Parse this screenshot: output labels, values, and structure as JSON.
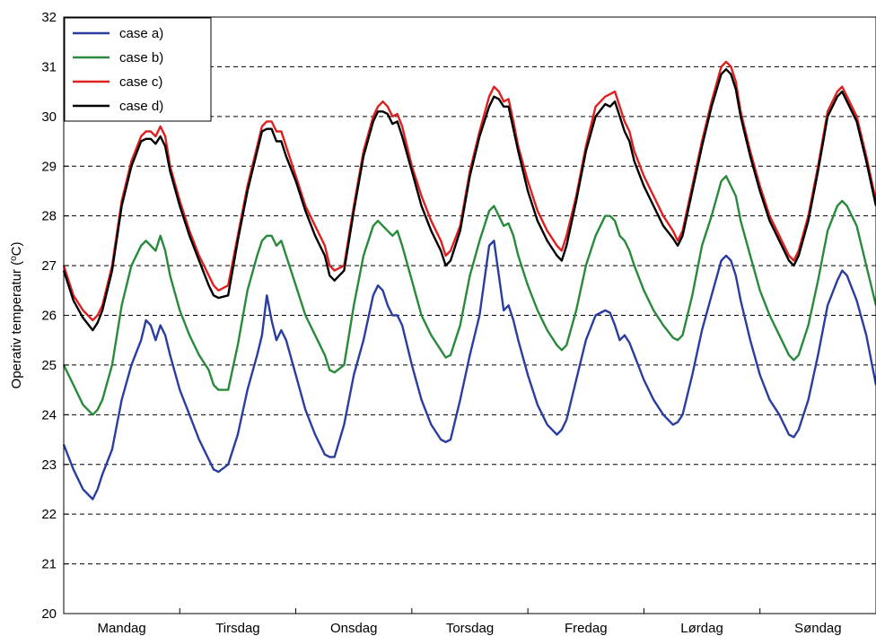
{
  "chart_data": {
    "type": "line",
    "title": "",
    "xlabel": "",
    "ylabel": "Operativ temperatur (",
    "ylabel_sup": "o",
    "ylabel_unit": "C)",
    "ylim": [
      20,
      32
    ],
    "yticks": [
      20,
      21,
      22,
      23,
      24,
      25,
      26,
      27,
      28,
      29,
      30,
      31,
      32
    ],
    "xlim": [
      0,
      168
    ],
    "categories": [
      "Mandag",
      "Tirsdag",
      "Onsdag",
      "Torsdag",
      "Fredag",
      "Lørdag",
      "Søndag"
    ],
    "grid": "horizontal-dashed",
    "legend_position": "top-left",
    "x": [
      0,
      2,
      4,
      6,
      7,
      8,
      10,
      12,
      14,
      16,
      17,
      18,
      19,
      20,
      21,
      22,
      24,
      26,
      28,
      30,
      31,
      32,
      34,
      36,
      38,
      40,
      41,
      42,
      43,
      44,
      45,
      46,
      48,
      50,
      52,
      54,
      55,
      56,
      58,
      60,
      62,
      64,
      65,
      66,
      67,
      68,
      69,
      70,
      72,
      74,
      76,
      78,
      79,
      80,
      82,
      84,
      86,
      88,
      89,
      90,
      91,
      92,
      93,
      94,
      96,
      98,
      100,
      102,
      103,
      104,
      106,
      108,
      110,
      112,
      113,
      114,
      115,
      116,
      117,
      118,
      120,
      122,
      124,
      126,
      127,
      128,
      130,
      132,
      134,
      136,
      137,
      138,
      139,
      140,
      142,
      144,
      146,
      148,
      150,
      151,
      152,
      154,
      156,
      158,
      160,
      161,
      162,
      164,
      166,
      168
    ],
    "series": [
      {
        "name": "case a)",
        "color": "#2b3ea0",
        "values": [
          23.4,
          22.9,
          22.5,
          22.3,
          22.5,
          22.8,
          23.3,
          24.3,
          25.0,
          25.5,
          25.9,
          25.8,
          25.5,
          25.8,
          25.6,
          25.2,
          24.5,
          24.0,
          23.5,
          23.1,
          22.9,
          22.85,
          23.0,
          23.6,
          24.5,
          25.2,
          25.6,
          26.4,
          25.9,
          25.5,
          25.7,
          25.5,
          24.8,
          24.1,
          23.6,
          23.2,
          23.15,
          23.15,
          23.8,
          24.8,
          25.5,
          26.4,
          26.6,
          26.5,
          26.2,
          26.0,
          26.0,
          25.8,
          25.0,
          24.3,
          23.8,
          23.5,
          23.45,
          23.5,
          24.3,
          25.2,
          26.0,
          27.4,
          27.5,
          26.8,
          26.1,
          26.2,
          25.9,
          25.5,
          24.8,
          24.2,
          23.8,
          23.6,
          23.7,
          23.9,
          24.7,
          25.5,
          26.0,
          26.1,
          26.05,
          25.8,
          25.5,
          25.6,
          25.45,
          25.2,
          24.7,
          24.3,
          24.0,
          23.8,
          23.85,
          24.0,
          24.8,
          25.7,
          26.4,
          27.1,
          27.2,
          27.1,
          26.8,
          26.3,
          25.5,
          24.8,
          24.3,
          24.0,
          23.6,
          23.55,
          23.7,
          24.3,
          25.2,
          26.2,
          26.7,
          26.9,
          26.8,
          26.3,
          25.6,
          24.6
        ]
      },
      {
        "name": "case b)",
        "color": "#2a8a3c",
        "values": [
          25.0,
          24.6,
          24.2,
          24.0,
          24.1,
          24.3,
          25.0,
          26.2,
          27.0,
          27.4,
          27.5,
          27.4,
          27.3,
          27.6,
          27.3,
          26.8,
          26.1,
          25.6,
          25.2,
          24.9,
          24.6,
          24.5,
          24.5,
          25.4,
          26.5,
          27.2,
          27.5,
          27.6,
          27.6,
          27.4,
          27.5,
          27.2,
          26.6,
          26.0,
          25.6,
          25.2,
          24.9,
          24.85,
          25.0,
          26.2,
          27.2,
          27.8,
          27.9,
          27.8,
          27.7,
          27.6,
          27.7,
          27.4,
          26.7,
          26.0,
          25.6,
          25.3,
          25.15,
          25.2,
          25.8,
          26.8,
          27.5,
          28.1,
          28.2,
          28.0,
          27.8,
          27.85,
          27.6,
          27.2,
          26.6,
          26.1,
          25.7,
          25.4,
          25.3,
          25.4,
          26.1,
          27.0,
          27.6,
          28.0,
          28.0,
          27.9,
          27.6,
          27.5,
          27.3,
          27.0,
          26.5,
          26.1,
          25.8,
          25.55,
          25.5,
          25.6,
          26.4,
          27.4,
          28.0,
          28.7,
          28.8,
          28.6,
          28.4,
          27.9,
          27.2,
          26.5,
          26.0,
          25.6,
          25.2,
          25.1,
          25.2,
          25.8,
          26.7,
          27.7,
          28.2,
          28.3,
          28.2,
          27.8,
          27.0,
          26.2
        ]
      },
      {
        "name": "case c)",
        "color": "#e02020",
        "values": [
          27.0,
          26.4,
          26.1,
          25.9,
          26.0,
          26.2,
          27.0,
          28.3,
          29.1,
          29.6,
          29.7,
          29.7,
          29.6,
          29.8,
          29.6,
          29.0,
          28.3,
          27.7,
          27.2,
          26.8,
          26.6,
          26.5,
          26.6,
          27.6,
          28.6,
          29.4,
          29.8,
          29.9,
          29.9,
          29.7,
          29.7,
          29.4,
          28.8,
          28.2,
          27.8,
          27.4,
          27.0,
          26.9,
          27.0,
          28.2,
          29.3,
          30.0,
          30.2,
          30.3,
          30.2,
          30.0,
          30.05,
          29.8,
          29.0,
          28.4,
          27.9,
          27.5,
          27.2,
          27.3,
          27.8,
          28.9,
          29.7,
          30.4,
          30.6,
          30.5,
          30.3,
          30.35,
          29.9,
          29.4,
          28.7,
          28.1,
          27.7,
          27.4,
          27.3,
          27.6,
          28.4,
          29.4,
          30.2,
          30.4,
          30.45,
          30.5,
          30.2,
          29.9,
          29.7,
          29.3,
          28.8,
          28.4,
          28.0,
          27.7,
          27.5,
          27.7,
          28.6,
          29.5,
          30.3,
          31.0,
          31.1,
          31.0,
          30.7,
          30.1,
          29.3,
          28.6,
          28.0,
          27.6,
          27.2,
          27.1,
          27.3,
          28.0,
          29.0,
          30.1,
          30.5,
          30.6,
          30.4,
          30.0,
          29.2,
          28.3
        ]
      },
      {
        "name": "case d)",
        "color": "#000000",
        "values": [
          26.9,
          26.3,
          25.95,
          25.7,
          25.85,
          26.1,
          26.9,
          28.2,
          29.0,
          29.5,
          29.55,
          29.55,
          29.45,
          29.6,
          29.4,
          28.9,
          28.2,
          27.6,
          27.1,
          26.6,
          26.4,
          26.35,
          26.4,
          27.5,
          28.5,
          29.3,
          29.7,
          29.75,
          29.75,
          29.5,
          29.5,
          29.2,
          28.7,
          28.1,
          27.6,
          27.2,
          26.8,
          26.7,
          26.9,
          28.1,
          29.2,
          29.9,
          30.1,
          30.1,
          30.05,
          29.85,
          29.9,
          29.6,
          28.9,
          28.2,
          27.7,
          27.3,
          27.0,
          27.1,
          27.7,
          28.8,
          29.6,
          30.2,
          30.4,
          30.35,
          30.2,
          30.2,
          29.75,
          29.3,
          28.5,
          27.9,
          27.5,
          27.2,
          27.1,
          27.4,
          28.3,
          29.3,
          30.0,
          30.25,
          30.2,
          30.3,
          30.0,
          29.7,
          29.5,
          29.1,
          28.6,
          28.2,
          27.8,
          27.55,
          27.4,
          27.6,
          28.5,
          29.4,
          30.2,
          30.85,
          30.95,
          30.85,
          30.55,
          30.0,
          29.2,
          28.5,
          27.9,
          27.5,
          27.1,
          27.0,
          27.2,
          27.9,
          28.9,
          30.0,
          30.4,
          30.5,
          30.3,
          29.9,
          29.1,
          28.2
        ]
      }
    ]
  }
}
